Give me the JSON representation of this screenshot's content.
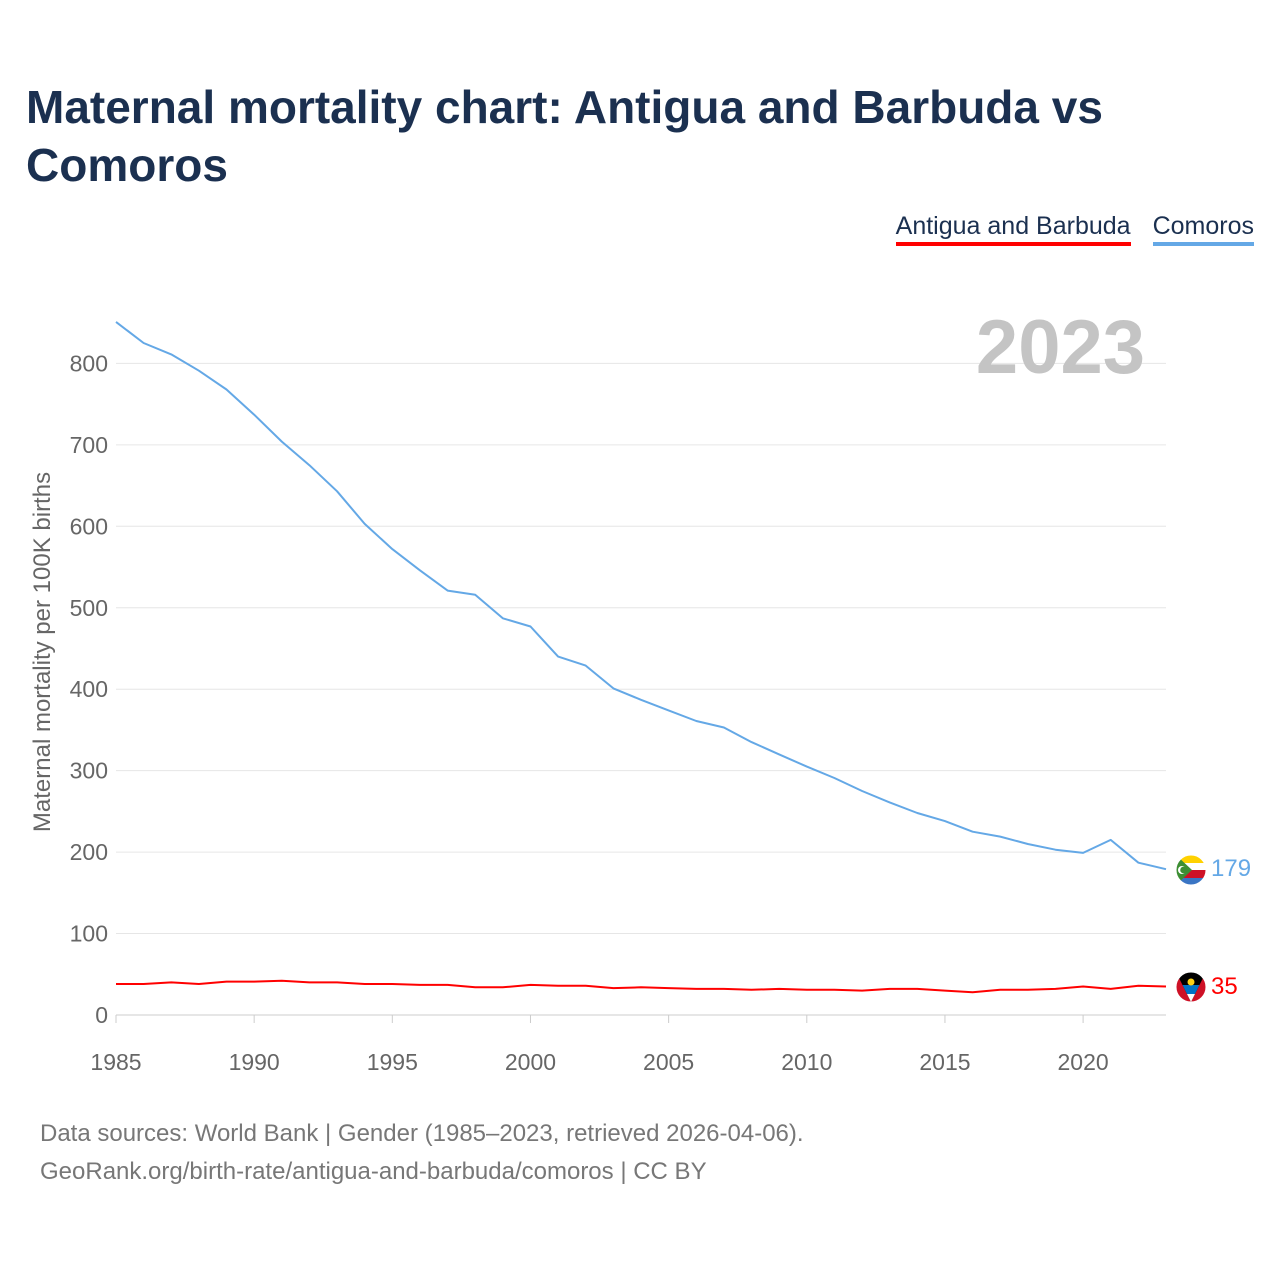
{
  "title": "Maternal mortality chart: Antigua and Barbuda vs Comoros",
  "footer": {
    "sources": "Data sources: World Bank | Gender (1985–2023, retrieved 2026-04-06).",
    "url": "GeoRank.org/birth-rate/antigua-and-barbuda/comoros | CC BY"
  },
  "year_watermark": "2023",
  "chart_data": {
    "type": "line",
    "title": "Maternal mortality chart: Antigua and Barbuda vs Comoros",
    "xlabel": "",
    "ylabel": "Maternal mortality per 100K births",
    "xlim": [
      1985,
      2023
    ],
    "ylim": [
      0,
      850
    ],
    "x_ticks": [
      1985,
      1990,
      1995,
      2000,
      2005,
      2010,
      2015,
      2020
    ],
    "y_ticks": [
      0,
      100,
      200,
      300,
      400,
      500,
      600,
      700,
      800
    ],
    "grid": true,
    "legend_position": "top-right",
    "x": [
      1985,
      1986,
      1987,
      1988,
      1989,
      1990,
      1991,
      1992,
      1993,
      1994,
      1995,
      1996,
      1997,
      1998,
      1999,
      2000,
      2001,
      2002,
      2003,
      2004,
      2005,
      2006,
      2007,
      2008,
      2009,
      2010,
      2011,
      2012,
      2013,
      2014,
      2015,
      2016,
      2017,
      2018,
      2019,
      2020,
      2021,
      2022,
      2023
    ],
    "series": [
      {
        "name": "Antigua and Barbuda",
        "color": "#ff0000",
        "end_label": "35",
        "flag": "antigua-and-barbuda-flag",
        "values": [
          38,
          38,
          40,
          38,
          41,
          41,
          42,
          40,
          40,
          38,
          38,
          37,
          37,
          34,
          34,
          37,
          36,
          36,
          33,
          34,
          33,
          32,
          32,
          31,
          32,
          31,
          31,
          30,
          32,
          32,
          30,
          28,
          31,
          31,
          32,
          35,
          32,
          36,
          35
        ]
      },
      {
        "name": "Comoros",
        "color": "#64a8e6",
        "end_label": "179",
        "flag": "comoros-flag",
        "values": [
          851,
          825,
          811,
          791,
          768,
          737,
          704,
          675,
          643,
          603,
          572,
          546,
          521,
          516,
          487,
          477,
          440,
          429,
          401,
          387,
          374,
          361,
          353,
          335,
          320,
          305,
          291,
          275,
          261,
          248,
          238,
          225,
          219,
          210,
          203,
          199,
          215,
          187,
          179
        ]
      }
    ]
  }
}
